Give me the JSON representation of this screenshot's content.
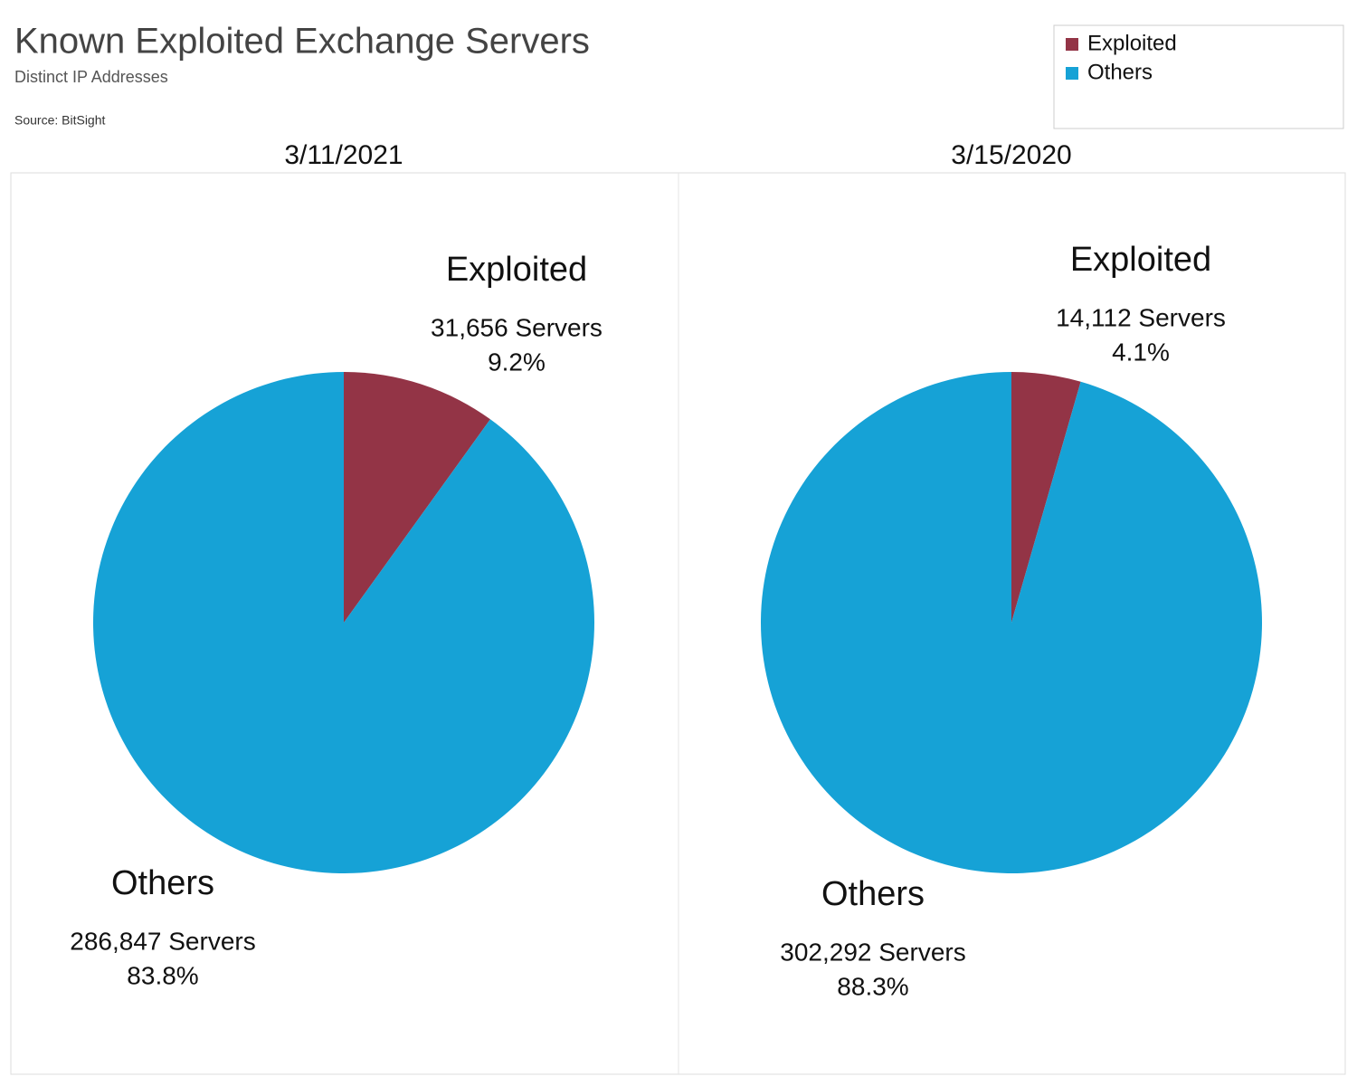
{
  "title": "Known Exploited Exchange Servers",
  "subtitle": "Distinct IP Addresses",
  "source": "Source: BitSight",
  "chart_data": [
    {
      "type": "pie",
      "title": "3/11/2021",
      "categories": [
        "Exploited",
        "Others"
      ],
      "values": [
        31656,
        286847
      ],
      "value_labels": [
        "31,656 Servers",
        "286,847 Servers"
      ],
      "shares": [
        9.2,
        83.8
      ],
      "share_labels": [
        "9.2%",
        "83.8%"
      ],
      "colors": [
        "#933446",
        "#16a2d6"
      ]
    },
    {
      "type": "pie",
      "title": "3/15/2020",
      "categories": [
        "Exploited",
        "Others"
      ],
      "values": [
        14112,
        302292
      ],
      "value_labels": [
        "14,112 Servers",
        "302,292 Servers"
      ],
      "shares": [
        4.1,
        88.3
      ],
      "share_labels": [
        "4.1%",
        "88.3%"
      ],
      "colors": [
        "#933446",
        "#16a2d6"
      ]
    }
  ]
}
